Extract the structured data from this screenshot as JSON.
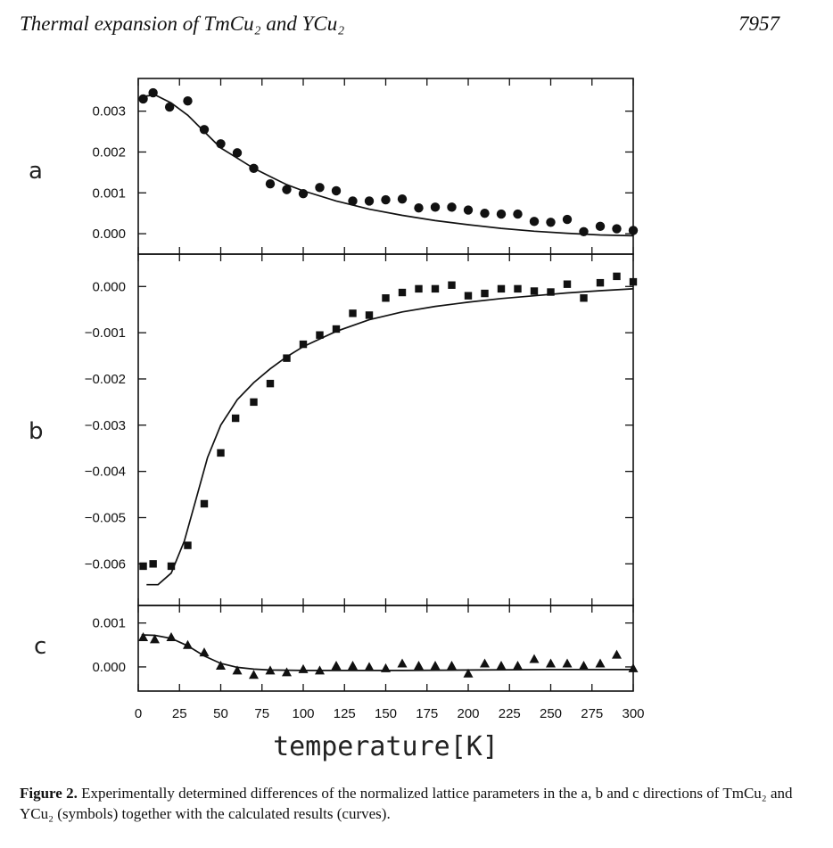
{
  "header": {
    "title": "Thermal expansion of TmCu₂ and YCu₂",
    "page_number": "7957"
  },
  "caption": {
    "label": "Figure 2.",
    "text": "Experimentally determined differences of the normalized lattice parameters in the a, b and c directions of TmCu₂ and YCu₂ (symbols) together with the calculated results (curves)."
  },
  "chart_data": [
    {
      "type": "scatter",
      "panel_label": "a",
      "xlim": [
        0,
        300
      ],
      "ylim": [
        -0.0005,
        0.0038
      ],
      "yticks": [
        "0.003",
        "0.002",
        "0.001",
        "0.000"
      ],
      "ytick_values": [
        0.003,
        0.002,
        0.001,
        0.0
      ],
      "marker": "circle",
      "points": {
        "x": [
          3,
          9,
          19,
          30,
          40,
          50,
          60,
          70,
          80,
          90,
          100,
          110,
          120,
          130,
          140,
          150,
          160,
          170,
          180,
          190,
          200,
          210,
          220,
          230,
          240,
          250,
          260,
          270,
          280,
          290,
          300
        ],
        "y": [
          0.0033,
          0.00345,
          0.0031,
          0.00325,
          0.00255,
          0.0022,
          0.00198,
          0.0016,
          0.00122,
          0.00108,
          0.00098,
          0.00113,
          0.00105,
          0.0008,
          0.0008,
          0.00083,
          0.00085,
          0.00063,
          0.00065,
          0.00065,
          0.00058,
          0.0005,
          0.00048,
          0.00048,
          0.0003,
          0.00028,
          0.00035,
          5e-05,
          0.00018,
          0.00012,
          8e-05
        ]
      },
      "curve": {
        "x": [
          2,
          10,
          20,
          30,
          40,
          50,
          60,
          70,
          80,
          90,
          100,
          120,
          140,
          160,
          180,
          200,
          220,
          240,
          260,
          280,
          300
        ],
        "y": [
          0.00335,
          0.0034,
          0.0032,
          0.0029,
          0.0025,
          0.0021,
          0.00185,
          0.0016,
          0.0014,
          0.0012,
          0.00105,
          0.0008,
          0.0006,
          0.00045,
          0.00032,
          0.00022,
          0.00013,
          6e-05,
          1e-05,
          -3e-05,
          -5e-05
        ]
      }
    },
    {
      "type": "scatter",
      "panel_label": "b",
      "xlim": [
        0,
        300
      ],
      "ylim": [
        -0.0069,
        0.0007
      ],
      "yticks": [
        "0.000",
        "−0.001",
        "−0.002",
        "−0.003",
        "−0.004",
        "−0.005",
        "−0.006"
      ],
      "ytick_values": [
        0.0,
        -0.001,
        -0.002,
        -0.003,
        -0.004,
        -0.005,
        -0.006
      ],
      "marker": "square",
      "points": {
        "x": [
          3,
          9,
          20,
          30,
          40,
          50,
          59,
          70,
          80,
          90,
          100,
          110,
          120,
          130,
          140,
          150,
          160,
          170,
          180,
          190,
          200,
          210,
          220,
          230,
          240,
          250,
          260,
          270,
          280,
          290,
          300
        ],
        "y": [
          -0.00605,
          -0.006,
          -0.00605,
          -0.0056,
          -0.0047,
          -0.0036,
          -0.00285,
          -0.0025,
          -0.0021,
          -0.00155,
          -0.00125,
          -0.00105,
          -0.00092,
          -0.00058,
          -0.00062,
          -0.00025,
          -0.00013,
          -5e-05,
          -5e-05,
          3e-05,
          -0.0002,
          -0.00015,
          -5e-05,
          -5e-05,
          -0.0001,
          -0.00012,
          5e-05,
          -0.00025,
          8e-05,
          0.00022,
          0.0001
        ]
      },
      "curve": {
        "x": [
          5,
          12,
          20,
          28,
          35,
          42,
          50,
          60,
          70,
          80,
          90,
          100,
          120,
          140,
          160,
          180,
          200,
          220,
          240,
          260,
          280,
          300
        ],
        "y": [
          -0.00645,
          -0.00645,
          -0.0062,
          -0.0055,
          -0.0046,
          -0.0037,
          -0.003,
          -0.00245,
          -0.00208,
          -0.00178,
          -0.00152,
          -0.0013,
          -0.00097,
          -0.00072,
          -0.00055,
          -0.00043,
          -0.00034,
          -0.00026,
          -0.0002,
          -0.00014,
          -9e-05,
          -5e-05
        ]
      }
    },
    {
      "type": "scatter",
      "panel_label": "c",
      "xlim": [
        0,
        300
      ],
      "ylim": [
        -0.00055,
        0.0014
      ],
      "yticks": [
        "0.001",
        "0.000"
      ],
      "ytick_values": [
        0.001,
        0.0
      ],
      "marker": "triangle",
      "xticks": [
        "0",
        "25",
        "50",
        "75",
        "100",
        "125",
        "150",
        "175",
        "200",
        "225",
        "250",
        "275",
        "300"
      ],
      "xtick_values": [
        0,
        25,
        50,
        75,
        100,
        125,
        150,
        175,
        200,
        225,
        250,
        275,
        300
      ],
      "xlabel": "temperature[K]",
      "points": {
        "x": [
          3,
          10,
          20,
          30,
          40,
          50,
          60,
          70,
          80,
          90,
          100,
          110,
          120,
          130,
          140,
          150,
          160,
          170,
          180,
          190,
          200,
          210,
          220,
          230,
          240,
          250,
          260,
          270,
          280,
          290,
          300
        ],
        "y": [
          0.00068,
          0.00063,
          0.00068,
          0.0005,
          0.00033,
          3e-05,
          -8e-05,
          -0.00018,
          -8e-05,
          -0.00012,
          -5e-05,
          -8e-05,
          3e-05,
          3e-05,
          0.0,
          -3e-05,
          8e-05,
          3e-05,
          3e-05,
          3e-05,
          -0.00015,
          8e-05,
          3e-05,
          3e-05,
          0.00018,
          8e-05,
          8e-05,
          3e-05,
          8e-05,
          0.00028,
          -3e-05
        ]
      },
      "curve": {
        "x": [
          2,
          10,
          20,
          30,
          40,
          50,
          60,
          70,
          80,
          100,
          130,
          160,
          200,
          250,
          300
        ],
        "y": [
          0.00073,
          0.00072,
          0.00065,
          0.00048,
          0.00025,
          8e-05,
          -1e-05,
          -5e-05,
          -7e-05,
          -8e-05,
          -8e-05,
          -8e-05,
          -7e-05,
          -6e-05,
          -6e-05
        ]
      }
    }
  ]
}
